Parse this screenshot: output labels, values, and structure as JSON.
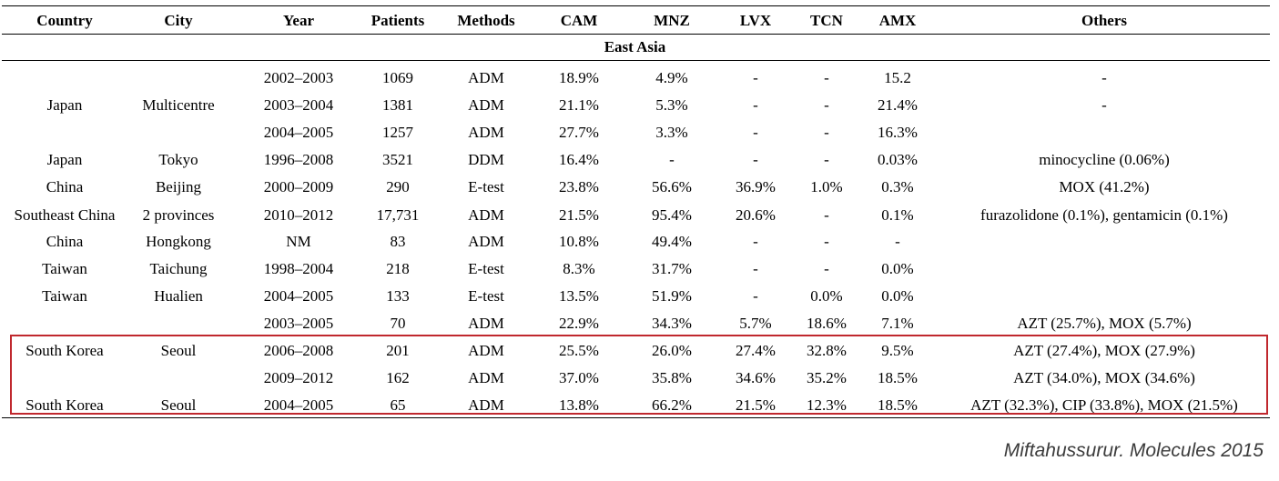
{
  "headers": [
    "Country",
    "City",
    "Year",
    "Patients",
    "Methods",
    "CAM",
    "MNZ",
    "LVX",
    "TCN",
    "AMX",
    "Others"
  ],
  "region": "East Asia",
  "rows": [
    [
      "",
      "",
      "2002–2003",
      "1069",
      "ADM",
      "18.9%",
      "4.9%",
      "-",
      "-",
      "15.2",
      "-"
    ],
    [
      "Japan",
      "Multicentre",
      "2003–2004",
      "1381",
      "ADM",
      "21.1%",
      "5.3%",
      "-",
      "-",
      "21.4%",
      "-"
    ],
    [
      "",
      "",
      "2004–2005",
      "1257",
      "ADM",
      "27.7%",
      "3.3%",
      "-",
      "-",
      "16.3%",
      ""
    ],
    [
      "Japan",
      "Tokyo",
      "1996–2008",
      "3521",
      "DDM",
      "16.4%",
      "-",
      "-",
      "-",
      "0.03%",
      "minocycline (0.06%)"
    ],
    [
      "China",
      "Beijing",
      "2000–2009",
      "290",
      "E-test",
      "23.8%",
      "56.6%",
      "36.9%",
      "1.0%",
      "0.3%",
      "MOX (41.2%)"
    ],
    [
      "Southeast China",
      "2 provinces",
      "2010–2012",
      "17,731",
      "ADM",
      "21.5%",
      "95.4%",
      "20.6%",
      "-",
      "0.1%",
      "furazolidone (0.1%), gentamicin (0.1%)"
    ],
    [
      "China",
      "Hongkong",
      "NM",
      "83",
      "ADM",
      "10.8%",
      "49.4%",
      "-",
      "-",
      "-",
      ""
    ],
    [
      "Taiwan",
      "Taichung",
      "1998–2004",
      "218",
      "E-test",
      "8.3%",
      "31.7%",
      "-",
      "-",
      "0.0%",
      ""
    ],
    [
      "Taiwan",
      "Hualien",
      "2004–2005",
      "133",
      "E-test",
      "13.5%",
      "51.9%",
      "-",
      "0.0%",
      "0.0%",
      ""
    ],
    [
      "",
      "",
      "2003–2005",
      "70",
      "ADM",
      "22.9%",
      "34.3%",
      "5.7%",
      "18.6%",
      "7.1%",
      "AZT (25.7%), MOX (5.7%)"
    ],
    [
      "South Korea",
      "Seoul",
      "2006–2008",
      "201",
      "ADM",
      "25.5%",
      "26.0%",
      "27.4%",
      "32.8%",
      "9.5%",
      "AZT (27.4%), MOX (27.9%)"
    ],
    [
      "",
      "",
      "2009–2012",
      "162",
      "ADM",
      "37.0%",
      "35.8%",
      "34.6%",
      "35.2%",
      "18.5%",
      "AZT (34.0%), MOX (34.6%)"
    ],
    [
      "South Korea",
      "Seoul",
      "2004–2005",
      "65",
      "ADM",
      "13.8%",
      "66.2%",
      "21.5%",
      "12.3%",
      "18.5%",
      "AZT (32.3%), CIP (33.8%), MOX (21.5%)"
    ]
  ],
  "citation": "Miftahussurur. Molecules 2015",
  "colors": {
    "highlight_border": "#c0282e",
    "citation_text": "#3c3c3c"
  }
}
